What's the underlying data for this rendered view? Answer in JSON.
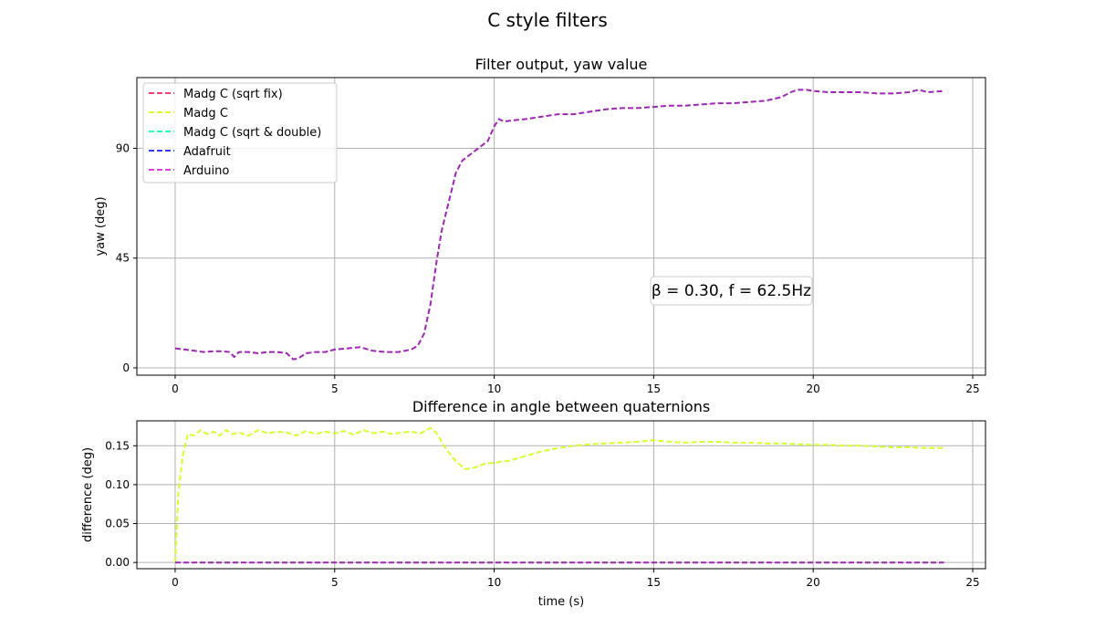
{
  "figure": {
    "suptitle": "C style filters"
  },
  "chart_data": [
    {
      "type": "line",
      "title": "Filter output, yaw value",
      "xlabel": "",
      "ylabel": "yaw (deg)",
      "xlim": [
        -1.2,
        25.4
      ],
      "ylim": [
        -3,
        119
      ],
      "xticks": [
        0,
        5,
        10,
        15,
        20,
        25
      ],
      "yticks": [
        0,
        45,
        90
      ],
      "grid": true,
      "legend_position": "top-left",
      "annotation": "β = 0.30,  f = 62.5Hz",
      "series": [
        {
          "name": "Madg C (sqrt fix)",
          "color": "#ff3c6e",
          "drawn": false
        },
        {
          "name": "Madg C",
          "color": "#d4ff2e",
          "drawn": false
        },
        {
          "name": "Madg C (sqrt & double)",
          "color": "#2effb4",
          "drawn": false
        },
        {
          "name": "Adafruit",
          "color": "#2e3cff",
          "drawn": false
        },
        {
          "name": "Arduino",
          "color": "#9c27b0",
          "legend_color": "#e040e0",
          "drawn": true,
          "x": [
            0,
            0.3,
            0.6,
            0.9,
            1.2,
            1.5,
            1.7,
            1.85,
            2.0,
            2.3,
            2.6,
            2.9,
            3.2,
            3.5,
            3.7,
            3.85,
            4.1,
            4.4,
            4.7,
            5.0,
            5.4,
            5.8,
            6.2,
            6.6,
            7.0,
            7.4,
            7.6,
            7.8,
            8.0,
            8.2,
            8.35,
            8.5,
            8.65,
            8.8,
            9.0,
            9.3,
            9.6,
            9.8,
            10.0,
            10.15,
            10.3,
            10.6,
            11.0,
            11.5,
            12.0,
            12.5,
            13.0,
            13.5,
            14.0,
            14.5,
            15.0,
            15.5,
            16.0,
            16.5,
            17.0,
            17.5,
            18.0,
            18.5,
            19.0,
            19.3,
            19.5,
            19.8,
            20.0,
            20.5,
            21.0,
            21.5,
            22.0,
            22.5,
            23.0,
            23.3,
            23.6,
            24.1
          ],
          "y": [
            8,
            7.5,
            7,
            6.5,
            6.8,
            6.8,
            6.5,
            4.5,
            6.5,
            6.5,
            6,
            6.5,
            6.5,
            6,
            3.5,
            3.8,
            6,
            6.5,
            6.5,
            7.5,
            8,
            8.5,
            7,
            6.5,
            6.5,
            7.5,
            9,
            14,
            26,
            44,
            56,
            64,
            72,
            80,
            85,
            88,
            91,
            93,
            99,
            102,
            101,
            101.5,
            102,
            103,
            104,
            104,
            105,
            106,
            106.5,
            106.5,
            107,
            107.5,
            107.5,
            108,
            108.5,
            108.5,
            109,
            109.5,
            111,
            113,
            114,
            114,
            113.5,
            113,
            113,
            113,
            112.5,
            112.5,
            113,
            114,
            113,
            113.5
          ]
        }
      ]
    },
    {
      "type": "line",
      "title": "Difference in angle between quaternions",
      "xlabel": "time (s)",
      "ylabel": "difference (deg)",
      "xlim": [
        -1.2,
        25.4
      ],
      "ylim": [
        -0.008,
        0.182
      ],
      "xticks": [
        0,
        5,
        10,
        15,
        20,
        25
      ],
      "yticks": [
        0.0,
        0.05,
        0.1,
        0.15
      ],
      "ytick_labels": [
        "0.00",
        "0.05",
        "0.10",
        "0.15"
      ],
      "grid": true,
      "series": [
        {
          "name": "Madg C",
          "color": "#d4ff2e",
          "x": [
            0,
            0.1,
            0.25,
            0.4,
            0.6,
            0.8,
            1.0,
            1.2,
            1.4,
            1.6,
            1.8,
            2.0,
            2.3,
            2.6,
            2.9,
            3.2,
            3.5,
            3.8,
            4.1,
            4.4,
            4.7,
            5.0,
            5.3,
            5.6,
            5.9,
            6.2,
            6.5,
            6.8,
            7.1,
            7.4,
            7.7,
            8.0,
            8.2,
            8.5,
            8.8,
            9.1,
            9.4,
            9.7,
            10.0,
            10.5,
            11.0,
            11.5,
            12.0,
            12.5,
            13.0,
            13.5,
            14.0,
            14.5,
            15.0,
            15.5,
            16.0,
            16.5,
            17.0,
            17.5,
            18.0,
            18.5,
            19.0,
            19.5,
            20.0,
            20.5,
            21.0,
            21.5,
            22.0,
            22.5,
            23.0,
            23.5,
            24.1
          ],
          "y": [
            0.0,
            0.09,
            0.14,
            0.165,
            0.163,
            0.17,
            0.165,
            0.168,
            0.163,
            0.17,
            0.165,
            0.167,
            0.163,
            0.17,
            0.166,
            0.168,
            0.167,
            0.163,
            0.169,
            0.165,
            0.168,
            0.166,
            0.169,
            0.164,
            0.17,
            0.166,
            0.168,
            0.165,
            0.167,
            0.168,
            0.166,
            0.173,
            0.166,
            0.145,
            0.13,
            0.12,
            0.122,
            0.127,
            0.128,
            0.131,
            0.137,
            0.143,
            0.147,
            0.15,
            0.152,
            0.153,
            0.154,
            0.155,
            0.157,
            0.155,
            0.154,
            0.155,
            0.155,
            0.154,
            0.154,
            0.153,
            0.153,
            0.152,
            0.151,
            0.151,
            0.15,
            0.15,
            0.149,
            0.148,
            0.148,
            0.147,
            0.147
          ]
        },
        {
          "name": "Arduino",
          "color": "#9c27b0",
          "x": [
            0,
            24.1
          ],
          "y": [
            0.0,
            0.0
          ]
        }
      ]
    }
  ]
}
